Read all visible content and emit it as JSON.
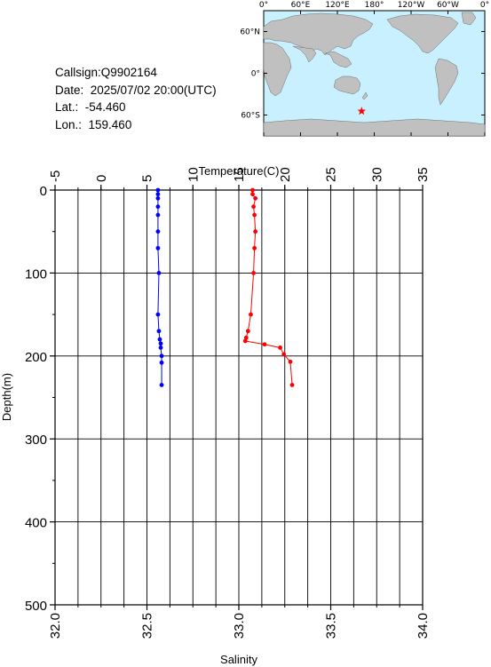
{
  "station": {
    "callsign": "Callsign:Q9902164",
    "date": "Date:  2025/07/02 20:00(UTC)",
    "lat": "Lat.:  -54.460",
    "lon": "Lon.:  159.460"
  },
  "map": {
    "lon_labels": [
      "0°",
      "60°E",
      "120°E",
      "180°",
      "120°W",
      "60°W",
      "0°"
    ],
    "lat_labels": [
      "60°N",
      "0°",
      "60°S"
    ],
    "ocean_color": "#c8f0ff",
    "land_color": "#c0c0c0",
    "marker_color": "#ff0000",
    "marker_lon": 159.46,
    "marker_lat": -54.46
  },
  "chart_data": {
    "type": "scatter",
    "top_axis": {
      "label": "Temperature(C)",
      "range": [
        -5,
        35
      ],
      "ticks": [
        "-5",
        "0",
        "5",
        "10",
        "15",
        "20",
        "25",
        "30",
        "35"
      ]
    },
    "bottom_axis": {
      "label": "Salinity",
      "range": [
        32.0,
        34.0
      ],
      "ticks": [
        "32.0",
        "32.5",
        "33.0",
        "33.5",
        "34.0"
      ]
    },
    "left_axis": {
      "label": "Depth(m)",
      "range": [
        0,
        500
      ],
      "ticks": [
        "0",
        "100",
        "200",
        "300",
        "400",
        "500"
      ]
    },
    "grid": true,
    "series": [
      {
        "axis": "salinity",
        "color": "#0000ff",
        "points": [
          [
            32.56,
            0
          ],
          [
            32.56,
            5
          ],
          [
            32.56,
            10
          ],
          [
            32.56,
            20
          ],
          [
            32.56,
            30
          ],
          [
            32.56,
            50
          ],
          [
            32.56,
            70
          ],
          [
            32.565,
            100
          ],
          [
            32.56,
            150
          ],
          [
            32.565,
            170
          ],
          [
            32.57,
            180
          ],
          [
            32.575,
            185
          ],
          [
            32.575,
            190
          ],
          [
            32.58,
            200
          ],
          [
            32.58,
            208
          ],
          [
            32.58,
            235
          ]
        ]
      },
      {
        "axis": "temperature",
        "color": "#ff0000",
        "points": [
          [
            16.5,
            0
          ],
          [
            16.5,
            5
          ],
          [
            16.8,
            10
          ],
          [
            16.6,
            20
          ],
          [
            16.7,
            30
          ],
          [
            16.8,
            50
          ],
          [
            16.7,
            70
          ],
          [
            16.6,
            100
          ],
          [
            16.3,
            150
          ],
          [
            16.0,
            170
          ],
          [
            15.8,
            178
          ],
          [
            15.7,
            182
          ],
          [
            17.8,
            186
          ],
          [
            19.5,
            190
          ],
          [
            19.9,
            198
          ],
          [
            20.6,
            207
          ],
          [
            20.8,
            235
          ]
        ]
      }
    ]
  }
}
